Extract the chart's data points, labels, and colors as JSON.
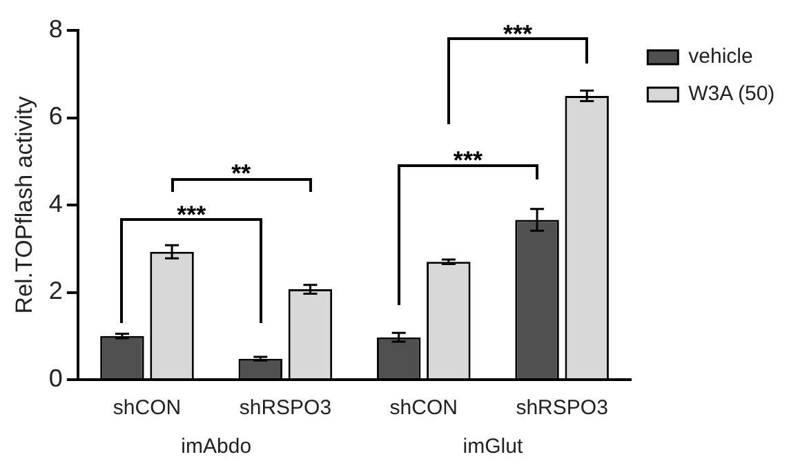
{
  "chart_data": {
    "type": "bar",
    "ylabel": "Rel.TOPflash activity",
    "categories": [
      "shCON",
      "shRSPO3",
      "shCON",
      "shRSPO3"
    ],
    "series": [
      {
        "name": "vehicle",
        "color": "#505050",
        "values": [
          1.0,
          0.48,
          0.97,
          3.66
        ],
        "errors": [
          0.05,
          0.04,
          0.1,
          0.25
        ]
      },
      {
        "name": "W3A (50)",
        "color": "#d8d8d8",
        "values": [
          2.93,
          2.07,
          2.7,
          6.5
        ],
        "errors": [
          0.15,
          0.1,
          0.05,
          0.12
        ]
      }
    ],
    "ylim": [
      0,
      8
    ],
    "yticks": [
      0,
      2,
      4,
      6,
      8
    ],
    "grid": false,
    "legend": "top right",
    "annotations": [
      "***",
      "**",
      "***",
      "***",
      "imAbdo",
      "imGlut"
    ]
  }
}
